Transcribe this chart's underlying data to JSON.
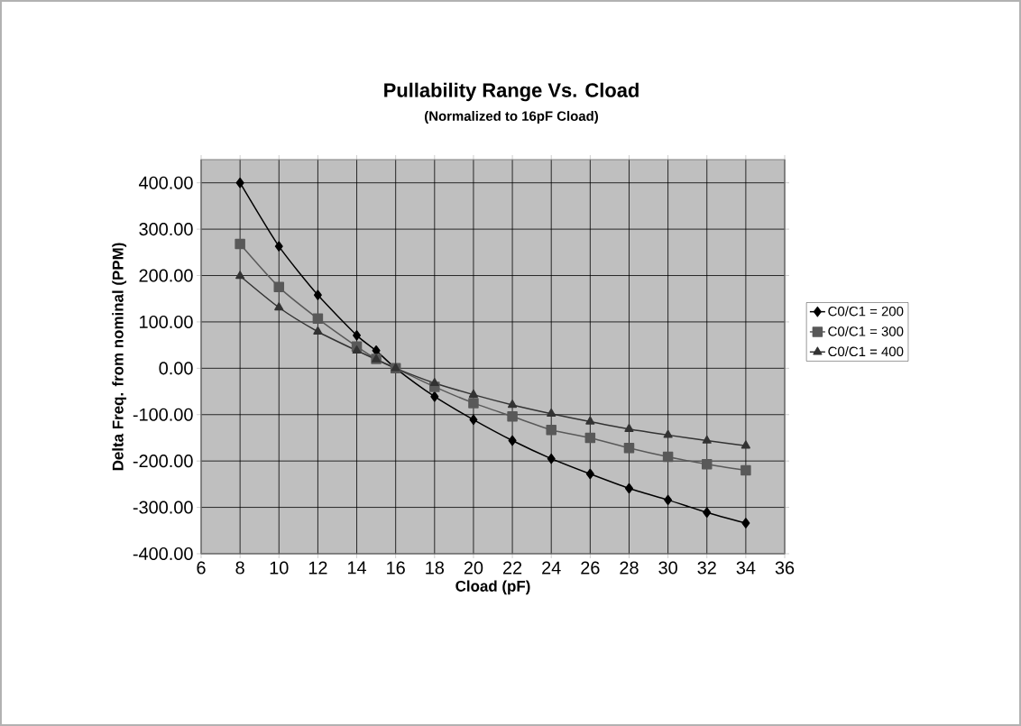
{
  "chart_data": {
    "type": "line",
    "title": "Pullability Range Vs. Cload",
    "subtitle": "(Normalized to 16pF Cload)",
    "xlabel": "Cload (pF)",
    "ylabel": "Delta Freq. from nominal (PPM)",
    "x": [
      8,
      10,
      12,
      14,
      15,
      16,
      18,
      20,
      22,
      24,
      26,
      28,
      30,
      32,
      34
    ],
    "series": [
      {
        "name": "C0/C1 = 200",
        "color": "#000000",
        "marker": "diamond",
        "values": [
          400,
          263,
          158,
          71,
          38,
          0,
          -61,
          -111,
          -156,
          -195,
          -228,
          -259,
          -284,
          -311,
          -334
        ]
      },
      {
        "name": "C0/C1 = 300",
        "color": "#595959",
        "marker": "square",
        "values": [
          268,
          175,
          107,
          47,
          20,
          0,
          -40,
          -75,
          -104,
          -133,
          -150,
          -172,
          -191,
          -207,
          -220
        ]
      },
      {
        "name": "C0/C1 = 400",
        "color": "#333333",
        "marker": "triangle",
        "values": [
          199,
          131,
          79,
          38,
          19,
          0,
          -32,
          -57,
          -79,
          -98,
          -115,
          -131,
          -144,
          -156,
          -167
        ]
      }
    ],
    "xlim": [
      6,
      36
    ],
    "xticks": [
      6,
      8,
      10,
      12,
      14,
      16,
      18,
      20,
      22,
      24,
      26,
      28,
      30,
      32,
      34,
      36
    ],
    "ylim": [
      -400,
      450
    ],
    "yticks": [
      {
        "value": -400,
        "label": "-400.00"
      },
      {
        "value": -300,
        "label": "-300.00"
      },
      {
        "value": -200,
        "label": "-200.00"
      },
      {
        "value": -100,
        "label": "-100.00"
      },
      {
        "value": 0,
        "label": "0.00"
      },
      {
        "value": 100,
        "label": "100.00"
      },
      {
        "value": 200,
        "label": "200.00"
      },
      {
        "value": 300,
        "label": "300.00"
      },
      {
        "value": 400,
        "label": "400.00"
      }
    ],
    "grid": true,
    "legend": "right"
  }
}
